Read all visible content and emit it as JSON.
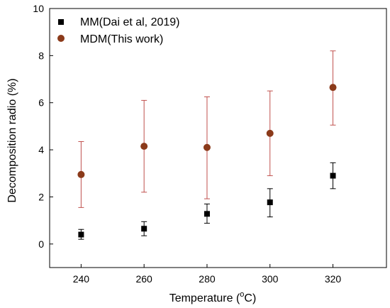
{
  "chart_data": {
    "type": "scatter",
    "title": "",
    "xlabel": {
      "main": "Temperature (",
      "sup_base": "o",
      "unit": "C)"
    },
    "ylabel": "Decomposition radio (%)",
    "xlim": [
      230,
      337
    ],
    "ylim": [
      -1,
      10
    ],
    "x_ticks": [
      240,
      260,
      280,
      300,
      320
    ],
    "y_ticks": [
      0,
      2,
      4,
      6,
      8,
      10
    ],
    "grid": false,
    "legend_position": "top-left",
    "series": [
      {
        "name": "MM(Dai et al, 2019)",
        "marker": "square",
        "color": "#000000",
        "points": [
          {
            "x": 240,
            "y": 0.4,
            "err_low": 0.2,
            "err_high": 0.62
          },
          {
            "x": 260,
            "y": 0.65,
            "err_low": 0.35,
            "err_high": 0.95
          },
          {
            "x": 280,
            "y": 1.28,
            "err_low": 0.88,
            "err_high": 1.7
          },
          {
            "x": 300,
            "y": 1.77,
            "err_low": 1.15,
            "err_high": 2.35
          },
          {
            "x": 320,
            "y": 2.9,
            "err_low": 2.35,
            "err_high": 3.45
          }
        ]
      },
      {
        "name": "MDM(This work)",
        "marker": "circle",
        "color": "#8B3A1A",
        "error_color": "#C0504D",
        "points": [
          {
            "x": 240,
            "y": 2.95,
            "err_low": 1.55,
            "err_high": 4.35
          },
          {
            "x": 260,
            "y": 4.15,
            "err_low": 2.2,
            "err_high": 6.1
          },
          {
            "x": 280,
            "y": 4.1,
            "err_low": 1.92,
            "err_high": 6.25
          },
          {
            "x": 300,
            "y": 4.7,
            "err_low": 2.9,
            "err_high": 6.5
          },
          {
            "x": 320,
            "y": 6.65,
            "err_low": 5.05,
            "err_high": 8.2
          }
        ]
      }
    ]
  }
}
